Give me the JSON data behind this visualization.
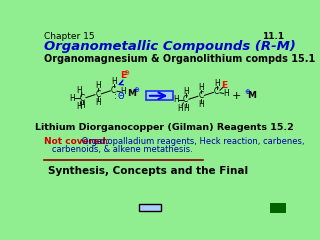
{
  "bg_color": "#90EE90",
  "title_chapter": "Chapter 15",
  "title_main": "Organometallic Compounds (R-M)",
  "title_main_color": "#0000CC",
  "slide_number": "11.1",
  "section1": "Organomagnesium & Organolithium compds 15.1",
  "section2": "Lithium Diorganocopper (Gilman) Reagents 15.2",
  "not_covered_label": "Not covered:",
  "not_covered_line1": " Organopalladium reagents, Heck reaction, carbenes,",
  "not_covered_line2": "   carbenoids, & alkene metathesis.",
  "not_covered_color": "#CC0000",
  "not_covered_text_color": "#0000AA",
  "bottom_text": "Synthesis, Concepts and the Final",
  "line_color": "#8B0000"
}
